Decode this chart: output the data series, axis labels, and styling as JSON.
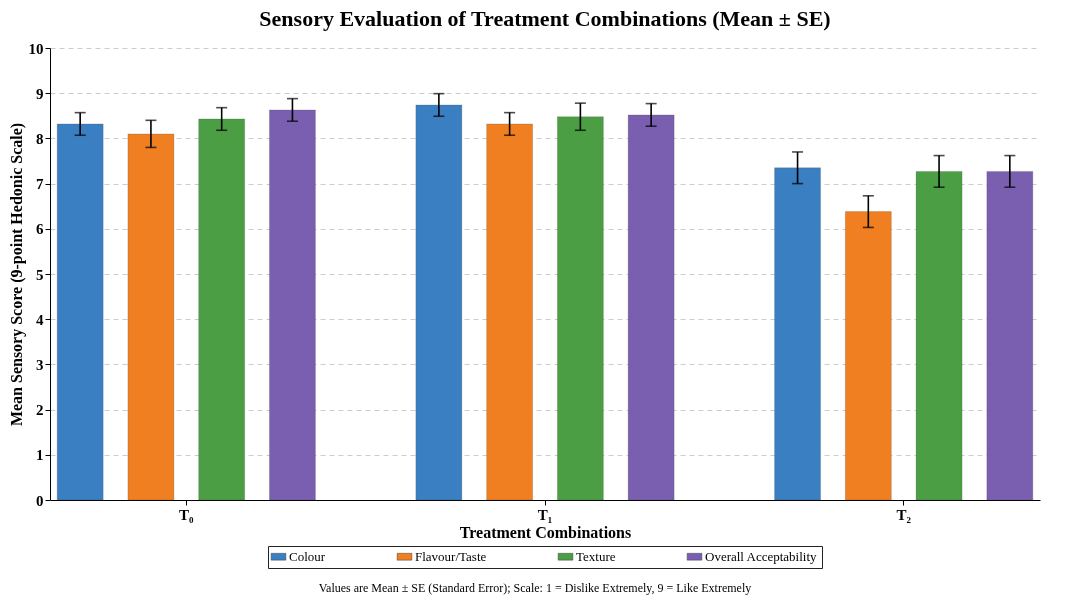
{
  "chart_data": {
    "type": "bar",
    "title": "Sensory Evaluation of Treatment Combinations (Mean ± SE)",
    "xlabel": "Treatment Combinations",
    "ylabel": "Mean Sensory Score (9-point Hedonic Scale)",
    "categories": [
      "T₀",
      "T₁",
      "T₂"
    ],
    "series": [
      {
        "name": "Colour",
        "color": "#3a7fc1",
        "values": [
          8.32,
          8.74,
          7.35
        ],
        "errors": [
          0.25,
          0.25,
          0.35
        ]
      },
      {
        "name": "Flavour/Taste",
        "color": "#f07f22",
        "values": [
          8.1,
          8.32,
          6.38
        ],
        "errors": [
          0.3,
          0.25,
          0.35
        ]
      },
      {
        "name": "Texture",
        "color": "#4b9e44",
        "values": [
          8.43,
          8.48,
          7.27
        ],
        "errors": [
          0.25,
          0.3,
          0.35
        ]
      },
      {
        "name": "Overall Acceptability",
        "color": "#7a5fb0",
        "values": [
          8.63,
          8.52,
          7.27
        ],
        "errors": [
          0.25,
          0.25,
          0.35
        ]
      }
    ],
    "ylim": [
      0,
      10
    ],
    "yticks": [
      0,
      1,
      2,
      3,
      4,
      5,
      6,
      7,
      8,
      9,
      10
    ],
    "grid": "y",
    "legend": "bottom",
    "annotations": [
      "Values are Mean ± SE (Standard Error); Scale: 1 = Dislike Extremely, 9 = Like Extremely"
    ]
  }
}
